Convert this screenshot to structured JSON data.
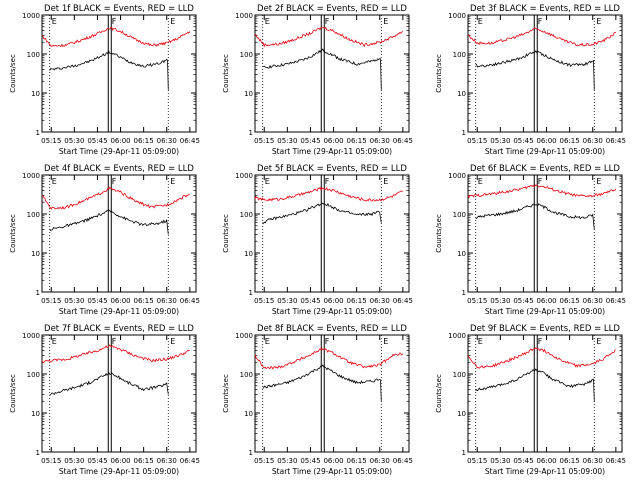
{
  "figure": {
    "background": "#ffffff",
    "colors": {
      "events": "#000000",
      "lld": "#e8000b",
      "axes": "#000000"
    }
  },
  "chart_data": [
    {
      "type": "line",
      "title": "Det 1f BLACK = Events, RED = LLD",
      "xlabel": "Start Time (29-Apr-11 05:09:00)",
      "ylabel": "Counts/sec",
      "ylim": [
        1,
        1000
      ],
      "yscale": "log",
      "x_tick_labels": [
        "05:15",
        "05:30",
        "05:45",
        "06:00",
        "06:15",
        "06:30",
        "06:45"
      ],
      "y_tick_labels": [
        "1",
        "10",
        "100",
        "1000"
      ],
      "markers": [
        "E",
        "F",
        "E"
      ],
      "marker_times": [
        "05:14",
        "05:53",
        "06:31"
      ],
      "series": [
        {
          "name": "Events",
          "color": "#000000",
          "x": [
            "05:14",
            "05:20",
            "05:30",
            "05:40",
            "05:45",
            "05:50",
            "05:53",
            "05:57",
            "06:05",
            "06:15",
            "06:25",
            "06:30",
            "06:31"
          ],
          "y": [
            40,
            42,
            50,
            65,
            80,
            100,
            110,
            95,
            65,
            48,
            58,
            70,
            12
          ]
        },
        {
          "name": "LLD",
          "color": "#e8000b",
          "x": [
            "05:09",
            "05:15",
            "05:25",
            "05:35",
            "05:45",
            "05:50",
            "05:53",
            "06:00",
            "06:10",
            "06:20",
            "06:30",
            "06:38",
            "06:45"
          ],
          "y": [
            300,
            160,
            170,
            230,
            330,
            420,
            470,
            380,
            230,
            165,
            190,
            260,
            380
          ]
        }
      ]
    },
    {
      "type": "line",
      "title": "Det 2f BLACK = Events, RED = LLD",
      "xlabel": "Start Time (29-Apr-11 05:09:00)",
      "ylabel": "Counts/sec",
      "ylim": [
        1,
        1000
      ],
      "yscale": "log",
      "x_tick_labels": [
        "05:15",
        "05:30",
        "05:45",
        "06:00",
        "06:15",
        "06:30",
        "06:45"
      ],
      "y_tick_labels": [
        "1",
        "10",
        "100",
        "1000"
      ],
      "markers": [
        "E",
        "F",
        "E"
      ],
      "marker_times": [
        "05:14",
        "05:53",
        "06:31"
      ],
      "series": [
        {
          "name": "Events",
          "color": "#000000",
          "x": [
            "05:14",
            "05:20",
            "05:30",
            "05:40",
            "05:45",
            "05:50",
            "05:53",
            "05:57",
            "06:05",
            "06:15",
            "06:25",
            "06:30",
            "06:31"
          ],
          "y": [
            45,
            48,
            55,
            70,
            85,
            110,
            125,
            105,
            72,
            55,
            65,
            80,
            12
          ]
        },
        {
          "name": "LLD",
          "color": "#e8000b",
          "x": [
            "05:09",
            "05:15",
            "05:25",
            "05:35",
            "05:45",
            "05:50",
            "05:53",
            "06:00",
            "06:10",
            "06:20",
            "06:30",
            "06:38",
            "06:45"
          ],
          "y": [
            320,
            170,
            180,
            240,
            340,
            430,
            480,
            390,
            240,
            170,
            200,
            270,
            380
          ]
        }
      ]
    },
    {
      "type": "line",
      "title": "Det 3f BLACK = Events, RED = LLD",
      "xlabel": "Start Time (29-Apr-11 05:09:00)",
      "ylabel": "Counts/sec",
      "ylim": [
        1,
        1000
      ],
      "yscale": "log",
      "x_tick_labels": [
        "05:15",
        "05:30",
        "05:45",
        "06:00",
        "06:15",
        "06:30",
        "06:45"
      ],
      "y_tick_labels": [
        "1",
        "10",
        "100",
        "1000"
      ],
      "markers": [
        "E",
        "F",
        "E"
      ],
      "marker_times": [
        "05:14",
        "05:53",
        "06:31"
      ],
      "series": [
        {
          "name": "Events",
          "color": "#000000",
          "x": [
            "05:14",
            "05:20",
            "05:30",
            "05:40",
            "05:45",
            "05:50",
            "05:53",
            "05:57",
            "06:05",
            "06:15",
            "06:25",
            "06:30",
            "06:31"
          ],
          "y": [
            50,
            50,
            58,
            72,
            85,
            105,
            115,
            100,
            70,
            52,
            55,
            65,
            12
          ]
        },
        {
          "name": "LLD",
          "color": "#e8000b",
          "x": [
            "05:09",
            "05:15",
            "05:25",
            "05:35",
            "05:45",
            "05:50",
            "05:53",
            "06:00",
            "06:10",
            "06:20",
            "06:30",
            "06:38",
            "06:45"
          ],
          "y": [
            310,
            190,
            190,
            240,
            320,
            400,
            440,
            360,
            230,
            170,
            175,
            230,
            350
          ]
        }
      ]
    },
    {
      "type": "line",
      "title": "Det 4f BLACK = Events, RED = LLD",
      "xlabel": "Start Time (29-Apr-11 05:09:00)",
      "ylabel": "Counts/sec",
      "ylim": [
        1,
        1000
      ],
      "yscale": "log",
      "x_tick_labels": [
        "05:15",
        "05:30",
        "05:45",
        "06:00",
        "06:15",
        "06:30",
        "06:45"
      ],
      "y_tick_labels": [
        "1",
        "10",
        "100",
        "1000"
      ],
      "markers": [
        "E",
        "F",
        "E"
      ],
      "marker_times": [
        "05:14",
        "05:53",
        "06:31"
      ],
      "series": [
        {
          "name": "Events",
          "color": "#000000",
          "x": [
            "05:14",
            "05:20",
            "05:30",
            "05:40",
            "05:45",
            "05:50",
            "05:53",
            "05:57",
            "06:05",
            "06:15",
            "06:25",
            "06:30",
            "06:31"
          ],
          "y": [
            40,
            45,
            55,
            75,
            90,
            110,
            120,
            100,
            70,
            52,
            58,
            68,
            30
          ]
        },
        {
          "name": "LLD",
          "color": "#e8000b",
          "x": [
            "05:09",
            "05:15",
            "05:25",
            "05:35",
            "05:45",
            "05:50",
            "05:53",
            "06:00",
            "06:10",
            "06:20",
            "06:30",
            "06:38",
            "06:45"
          ],
          "y": [
            300,
            140,
            150,
            210,
            310,
            400,
            450,
            360,
            210,
            150,
            170,
            240,
            330
          ]
        }
      ]
    },
    {
      "type": "line",
      "title": "Det 5f BLACK = Events, RED = LLD",
      "xlabel": "Start Time (29-Apr-11 05:09:00)",
      "ylabel": "Counts/sec",
      "ylim": [
        1,
        1000
      ],
      "yscale": "log",
      "x_tick_labels": [
        "05:15",
        "05:30",
        "05:45",
        "06:00",
        "06:15",
        "06:30",
        "06:45"
      ],
      "y_tick_labels": [
        "1",
        "10",
        "100",
        "1000"
      ],
      "markers": [
        "E",
        "F",
        "E"
      ],
      "marker_times": [
        "05:14",
        "05:53",
        "06:31"
      ],
      "series": [
        {
          "name": "Events",
          "color": "#000000",
          "x": [
            "05:14",
            "05:20",
            "05:30",
            "05:40",
            "05:45",
            "05:50",
            "05:53",
            "05:57",
            "06:05",
            "06:15",
            "06:25",
            "06:30",
            "06:31"
          ],
          "y": [
            60,
            75,
            90,
            115,
            140,
            170,
            190,
            165,
            120,
            95,
            100,
            115,
            60
          ]
        },
        {
          "name": "LLD",
          "color": "#e8000b",
          "x": [
            "05:09",
            "05:15",
            "05:25",
            "05:35",
            "05:45",
            "05:50",
            "05:53",
            "06:00",
            "06:10",
            "06:20",
            "06:30",
            "06:38",
            "06:45"
          ],
          "y": [
            260,
            230,
            240,
            290,
            370,
            430,
            460,
            400,
            290,
            230,
            230,
            280,
            380
          ]
        }
      ]
    },
    {
      "type": "line",
      "title": "Det 6f BLACK = Events, RED = LLD",
      "xlabel": "Start Time (29-Apr-11 05:09:00)",
      "ylabel": "Counts/sec",
      "ylim": [
        1,
        1000
      ],
      "yscale": "log",
      "x_tick_labels": [
        "05:15",
        "05:30",
        "05:45",
        "06:00",
        "06:15",
        "06:30",
        "06:45"
      ],
      "y_tick_labels": [
        "1",
        "10",
        "100",
        "1000"
      ],
      "markers": [
        "E",
        "F",
        "E"
      ],
      "marker_times": [
        "05:14",
        "05:53",
        "06:31"
      ],
      "series": [
        {
          "name": "Events",
          "color": "#000000",
          "x": [
            "05:14",
            "05:20",
            "05:30",
            "05:40",
            "05:45",
            "05:50",
            "05:53",
            "05:57",
            "06:05",
            "06:15",
            "06:25",
            "06:30",
            "06:31"
          ],
          "y": [
            80,
            90,
            100,
            120,
            140,
            165,
            180,
            160,
            110,
            85,
            80,
            95,
            40
          ]
        },
        {
          "name": "LLD",
          "color": "#e8000b",
          "x": [
            "05:09",
            "05:15",
            "05:25",
            "05:35",
            "05:45",
            "05:50",
            "05:53",
            "06:00",
            "06:10",
            "06:20",
            "06:30",
            "06:38",
            "06:45"
          ],
          "y": [
            280,
            300,
            330,
            380,
            450,
            520,
            550,
            480,
            360,
            290,
            290,
            340,
            430
          ]
        }
      ]
    },
    {
      "type": "line",
      "title": "Det 7f BLACK = Events, RED = LLD",
      "xlabel": "Start Time (29-Apr-11 05:09:00)",
      "ylabel": "Counts/sec",
      "ylim": [
        1,
        1000
      ],
      "yscale": "log",
      "x_tick_labels": [
        "05:15",
        "05:30",
        "05:45",
        "06:00",
        "06:15",
        "06:30",
        "06:45"
      ],
      "y_tick_labels": [
        "1",
        "10",
        "100",
        "1000"
      ],
      "markers": [
        "E",
        "F",
        "E"
      ],
      "marker_times": [
        "05:14",
        "05:53",
        "06:31"
      ],
      "series": [
        {
          "name": "Events",
          "color": "#000000",
          "x": [
            "05:14",
            "05:20",
            "05:30",
            "05:40",
            "05:45",
            "05:50",
            "05:53",
            "05:57",
            "06:05",
            "06:15",
            "06:25",
            "06:30",
            "06:31"
          ],
          "y": [
            30,
            35,
            45,
            60,
            75,
            95,
            105,
            90,
            60,
            40,
            48,
            55,
            30
          ]
        },
        {
          "name": "LLD",
          "color": "#e8000b",
          "x": [
            "05:09",
            "05:15",
            "05:25",
            "05:35",
            "05:45",
            "05:50",
            "05:53",
            "06:00",
            "06:10",
            "06:20",
            "06:30",
            "06:38",
            "06:45"
          ],
          "y": [
            210,
            220,
            240,
            310,
            400,
            480,
            520,
            430,
            290,
            220,
            240,
            300,
            400
          ]
        }
      ]
    },
    {
      "type": "line",
      "title": "Det 8f BLACK = Events, RED = LLD",
      "xlabel": "Start Time (29-Apr-11 05:09:00)",
      "ylabel": "Counts/sec",
      "ylim": [
        1,
        1000
      ],
      "yscale": "log",
      "x_tick_labels": [
        "05:15",
        "05:30",
        "05:45",
        "06:00",
        "06:15",
        "06:30",
        "06:45"
      ],
      "y_tick_labels": [
        "1",
        "10",
        "100",
        "1000"
      ],
      "markers": [
        "E",
        "F",
        "E"
      ],
      "marker_times": [
        "05:14",
        "05:53",
        "06:31"
      ],
      "series": [
        {
          "name": "Events",
          "color": "#000000",
          "x": [
            "05:14",
            "05:20",
            "05:30",
            "05:40",
            "05:45",
            "05:50",
            "05:53",
            "05:57",
            "06:05",
            "06:15",
            "06:25",
            "06:30",
            "06:31"
          ],
          "y": [
            45,
            50,
            60,
            85,
            110,
            140,
            160,
            130,
            85,
            60,
            65,
            75,
            20
          ]
        },
        {
          "name": "LLD",
          "color": "#e8000b",
          "x": [
            "05:09",
            "05:15",
            "05:25",
            "05:35",
            "05:45",
            "05:50",
            "05:53",
            "06:00",
            "06:10",
            "06:20",
            "06:30",
            "06:38",
            "06:45"
          ],
          "y": [
            300,
            140,
            150,
            210,
            310,
            400,
            440,
            340,
            200,
            150,
            170,
            300,
            330
          ]
        }
      ]
    },
    {
      "type": "line",
      "title": "Det 9f BLACK = Events, RED = LLD",
      "xlabel": "Start Time (29-Apr-11 05:09:00)",
      "ylabel": "Counts/sec",
      "ylim": [
        1,
        1000
      ],
      "yscale": "log",
      "x_tick_labels": [
        "05:15",
        "05:30",
        "05:45",
        "06:00",
        "06:15",
        "06:30",
        "06:45"
      ],
      "y_tick_labels": [
        "1",
        "10",
        "100",
        "1000"
      ],
      "markers": [
        "E",
        "F",
        "E"
      ],
      "marker_times": [
        "05:14",
        "05:53",
        "06:31"
      ],
      "series": [
        {
          "name": "Events",
          "color": "#000000",
          "x": [
            "05:14",
            "05:20",
            "05:30",
            "05:40",
            "05:45",
            "05:50",
            "05:53",
            "05:57",
            "06:05",
            "06:15",
            "06:25",
            "06:30",
            "06:31"
          ],
          "y": [
            40,
            42,
            52,
            70,
            90,
            115,
            130,
            110,
            70,
            48,
            55,
            70,
            20
          ]
        },
        {
          "name": "LLD",
          "color": "#e8000b",
          "x": [
            "05:09",
            "05:15",
            "05:25",
            "05:35",
            "05:45",
            "05:50",
            "05:53",
            "06:00",
            "06:10",
            "06:20",
            "06:30",
            "06:38",
            "06:45"
          ],
          "y": [
            300,
            150,
            160,
            220,
            320,
            410,
            470,
            370,
            220,
            160,
            180,
            260,
            420
          ]
        }
      ]
    }
  ]
}
